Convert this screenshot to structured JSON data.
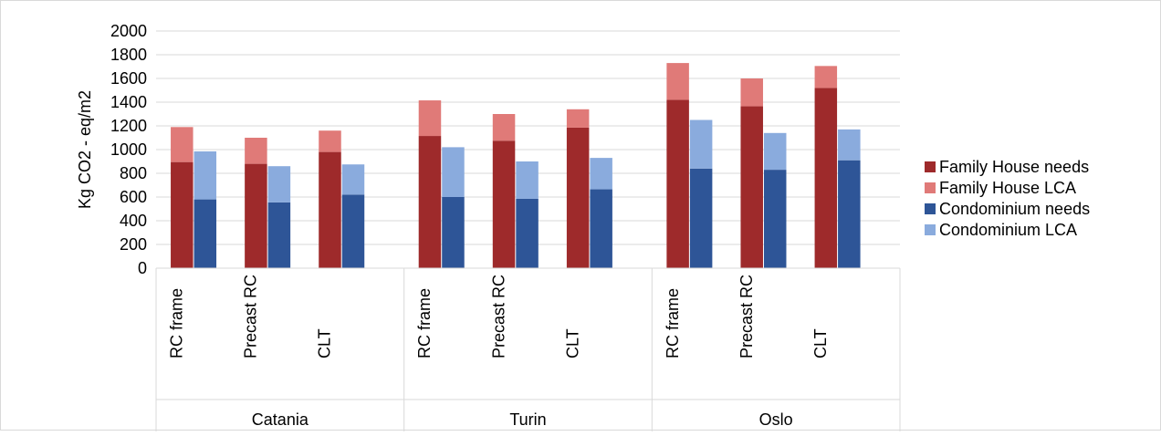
{
  "chart_data": {
    "type": "bar",
    "stacked": true,
    "ylabel": "Kg CO2 - eq/m2",
    "ylim": [
      0,
      2000
    ],
    "yticks": [
      0,
      200,
      400,
      600,
      800,
      1000,
      1200,
      1400,
      1600,
      1800,
      2000
    ],
    "grid": true,
    "legend_position": "right",
    "groups": [
      {
        "label": "Catania",
        "categories": [
          "RC frame",
          "Precast RC",
          "CLT"
        ]
      },
      {
        "label": "Turin",
        "categories": [
          "RC frame",
          "Precast RC",
          "CLT"
        ]
      },
      {
        "label": "Oslo",
        "categories": [
          "RC frame",
          "Precast RC",
          "CLT"
        ]
      }
    ],
    "series": [
      {
        "name": "Family House needs",
        "color": "#9e2a2b",
        "stack": "family",
        "values": [
          895,
          880,
          980,
          1115,
          1075,
          1185,
          1420,
          1365,
          1520
        ]
      },
      {
        "name": "Family House LCA",
        "color": "#e07a78",
        "stack": "family",
        "values": [
          295,
          220,
          180,
          300,
          225,
          155,
          310,
          235,
          185
        ]
      },
      {
        "name": "Condominium needs",
        "color": "#2e5597",
        "stack": "condo",
        "values": [
          580,
          555,
          620,
          600,
          585,
          665,
          840,
          830,
          910
        ]
      },
      {
        "name": "Condominium LCA",
        "color": "#8aabdd",
        "stack": "condo",
        "values": [
          405,
          305,
          255,
          420,
          315,
          265,
          410,
          310,
          260
        ]
      }
    ]
  }
}
